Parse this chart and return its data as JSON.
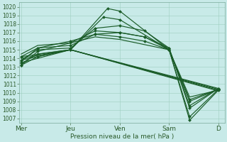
{
  "bg_color": "#c8eae8",
  "grid_color": "#9ecfbf",
  "line_color": "#1a5c28",
  "xlabel": "Pression niveau de la mer( hPa )",
  "x_ticks": [
    0,
    24,
    48,
    72,
    96
  ],
  "x_tick_labels": [
    "Mer",
    "Jeu",
    "Ven",
    "Sam",
    "D"
  ],
  "ylim": [
    1006.5,
    1020.5
  ],
  "yticks": [
    1007,
    1008,
    1009,
    1010,
    1011,
    1012,
    1013,
    1014,
    1015,
    1016,
    1017,
    1018,
    1019,
    1020
  ],
  "xlim": [
    -1,
    99
  ],
  "ensemble": [
    {
      "x": [
        0,
        8,
        24,
        42,
        48,
        72,
        82,
        96
      ],
      "y": [
        1013.2,
        1014.2,
        1015.0,
        1019.8,
        1019.5,
        1015.0,
        1006.8,
        1010.3
      ],
      "m": true
    },
    {
      "x": [
        0,
        8,
        24,
        40,
        48,
        72,
        82,
        96
      ],
      "y": [
        1013.4,
        1014.5,
        1015.0,
        1018.8,
        1018.5,
        1015.0,
        1007.2,
        1010.4
      ],
      "m": true
    },
    {
      "x": [
        0,
        8,
        24,
        36,
        48,
        60,
        72,
        82,
        96
      ],
      "y": [
        1013.8,
        1015.0,
        1015.2,
        1017.5,
        1017.8,
        1017.2,
        1015.2,
        1008.2,
        1010.5
      ],
      "m": true
    },
    {
      "x": [
        0,
        8,
        24,
        36,
        48,
        60,
        72,
        82,
        96
      ],
      "y": [
        1014.2,
        1015.2,
        1015.5,
        1016.8,
        1017.0,
        1016.5,
        1015.0,
        1009.0,
        1010.4
      ],
      "m": true
    },
    {
      "x": [
        0,
        8,
        24,
        36,
        48,
        72,
        82,
        96
      ],
      "y": [
        1014.5,
        1015.5,
        1015.8,
        1016.5,
        1016.2,
        1015.0,
        1009.5,
        1010.3
      ],
      "m": false
    },
    {
      "x": [
        0,
        24,
        96
      ],
      "y": [
        1013.5,
        1015.0,
        1010.2
      ],
      "m": false
    },
    {
      "x": [
        0,
        24,
        96
      ],
      "y": [
        1013.8,
        1015.0,
        1010.3
      ],
      "m": false
    },
    {
      "x": [
        0,
        24,
        96
      ],
      "y": [
        1014.0,
        1015.0,
        1010.4
      ],
      "m": false
    },
    {
      "x": [
        0,
        24,
        96
      ],
      "y": [
        1014.2,
        1015.0,
        1010.5
      ],
      "m": false
    },
    {
      "x": [
        0,
        8,
        24,
        36,
        48,
        60,
        72,
        82,
        96
      ],
      "y": [
        1013.6,
        1015.2,
        1016.0,
        1016.8,
        1016.5,
        1016.0,
        1015.0,
        1009.2,
        1010.4
      ],
      "m": true
    },
    {
      "x": [
        0,
        8,
        24,
        36,
        48,
        60,
        72,
        82,
        96
      ],
      "y": [
        1013.2,
        1014.8,
        1015.8,
        1017.2,
        1017.0,
        1016.5,
        1015.2,
        1008.5,
        1010.5
      ],
      "m": true
    }
  ]
}
